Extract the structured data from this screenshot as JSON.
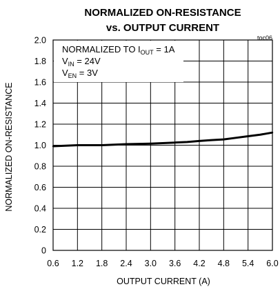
{
  "chart_data": {
    "type": "line",
    "title_line1": "NORMALIZED ON-RESISTANCE",
    "title_line2": "vs. OUTPUT CURRENT",
    "code": "toc06",
    "xlabel": "OUTPUT CURRENT (A)",
    "ylabel": "NORMALIZED ON-RESISTANCE",
    "xlim": [
      0.6,
      6.0
    ],
    "ylim": [
      0,
      2.0
    ],
    "x_ticks": [
      "0.6",
      "1.2",
      "1.8",
      "2.4",
      "3.0",
      "3.6",
      "4.2",
      "4.8",
      "5.4",
      "6.0"
    ],
    "x_tick_values": [
      0.6,
      1.2,
      1.8,
      2.4,
      3.0,
      3.6,
      4.2,
      4.8,
      5.4,
      6.0
    ],
    "y_ticks": [
      "0",
      "0.2",
      "0.4",
      "0.6",
      "0.8",
      "1.0",
      "1.2",
      "1.4",
      "1.6",
      "1.8",
      "2.0"
    ],
    "y_tick_values": [
      0,
      0.2,
      0.4,
      0.6,
      0.8,
      1.0,
      1.2,
      1.4,
      1.6,
      1.8,
      2.0
    ],
    "grid": true,
    "annotation": {
      "line1_main": "NORMALIZED TO I",
      "line1_sub": "OUT",
      "line1_rest": " = 1A",
      "line2_main": "V",
      "line2_sub": "IN",
      "line2_rest": " = 24V",
      "line3_main": "V",
      "line3_sub": "EN",
      "line3_rest": " = 3V"
    },
    "series": [
      {
        "x": [
          0.6,
          0.9,
          1.2,
          1.5,
          1.8,
          2.1,
          2.4,
          2.7,
          3.0,
          3.3,
          3.6,
          3.9,
          4.2,
          4.5,
          4.8,
          5.1,
          5.4,
          5.7,
          6.0
        ],
        "y": [
          0.99,
          0.995,
          1.0,
          1.0,
          1.0,
          1.005,
          1.01,
          1.012,
          1.015,
          1.02,
          1.025,
          1.03,
          1.04,
          1.048,
          1.055,
          1.07,
          1.085,
          1.1,
          1.12
        ]
      }
    ]
  }
}
